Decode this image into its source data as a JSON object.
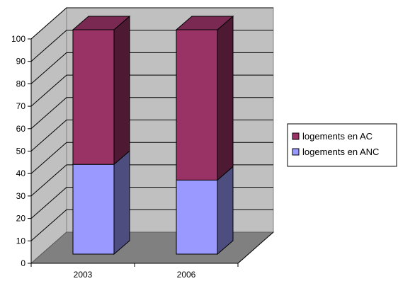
{
  "chart_data": {
    "type": "bar",
    "stacked": true,
    "three_d": true,
    "categories": [
      "2003",
      "2006"
    ],
    "series": [
      {
        "name": "logements en ANC",
        "values": [
          40,
          33
        ],
        "color": "#9999ff",
        "side_color": "#4d4d80",
        "top_color": "#c6c6ff"
      },
      {
        "name": "logements en AC",
        "values": [
          60,
          67
        ],
        "color": "#993366",
        "side_color": "#4d1933",
        "top_color": "#7a2952"
      }
    ],
    "legend_order": [
      "logements en AC",
      "logements en ANC"
    ],
    "legend_position": "right",
    "ylim": [
      0,
      100
    ],
    "yticks": [
      0,
      10,
      20,
      30,
      40,
      50,
      60,
      70,
      80,
      90,
      100
    ],
    "grid": true,
    "colors": {
      "back_wall": "#c0c0c0",
      "side_wall": "#c0c0c0",
      "floor": "#808080",
      "gridline": "#000000"
    }
  }
}
